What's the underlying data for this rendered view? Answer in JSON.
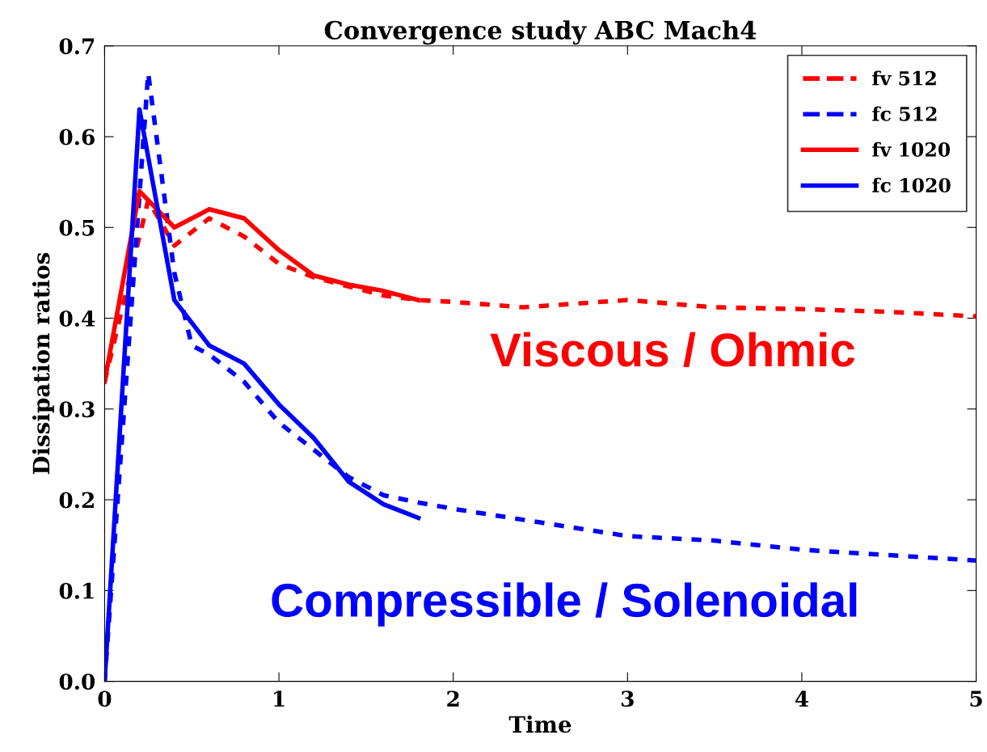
{
  "chart_data": {
    "type": "line",
    "title": "Convergence study ABC Mach4",
    "xlabel": "Time",
    "ylabel": "Dissipation ratios",
    "xlim": [
      0,
      5
    ],
    "ylim": [
      0,
      0.7
    ],
    "xticks": [
      0,
      1,
      2,
      3,
      4,
      5
    ],
    "yticks": [
      {
        "value": 0,
        "label": "0.0"
      },
      0.1,
      0.2,
      0.3,
      0.4,
      0.5,
      0.6,
      0.7
    ],
    "grid": false,
    "legend": "top right",
    "marker": "none",
    "series": [
      {
        "name": "fv 512",
        "color": "#ff0000",
        "line_style": "dashed",
        "x": [
          0,
          0.25,
          0.4,
          0.6,
          0.8,
          1.0,
          1.2,
          1.4,
          1.6,
          1.8,
          2.0,
          2.4,
          3.0,
          3.5,
          4.0,
          4.5,
          5.0
        ],
        "values": [
          0.33,
          0.53,
          0.48,
          0.51,
          0.49,
          0.46,
          0.445,
          0.435,
          0.425,
          0.42,
          0.418,
          0.412,
          0.42,
          0.412,
          0.41,
          0.407,
          0.402
        ]
      },
      {
        "name": "fc 512",
        "color": "#0000ff",
        "line_style": "dashed",
        "x": [
          0,
          0.25,
          0.4,
          0.5,
          0.6,
          0.8,
          1.0,
          1.2,
          1.4,
          1.6,
          1.8,
          2.0,
          2.5,
          3.0,
          3.5,
          4.0,
          4.5,
          5.0
        ],
        "values": [
          0.0,
          0.67,
          0.45,
          0.37,
          0.36,
          0.33,
          0.285,
          0.255,
          0.225,
          0.205,
          0.197,
          0.19,
          0.175,
          0.16,
          0.155,
          0.145,
          0.139,
          0.133
        ]
      },
      {
        "name": "fv 1020",
        "color": "#ff0000",
        "line_style": "solid",
        "x": [
          0,
          0.2,
          0.4,
          0.6,
          0.8,
          1.0,
          1.2,
          1.4,
          1.6,
          1.8
        ],
        "values": [
          0.33,
          0.54,
          0.5,
          0.52,
          0.51,
          0.475,
          0.447,
          0.437,
          0.43,
          0.42
        ]
      },
      {
        "name": "fc 1020",
        "color": "#0000ff",
        "line_style": "solid",
        "x": [
          0,
          0.2,
          0.4,
          0.6,
          0.8,
          1.0,
          1.2,
          1.4,
          1.6,
          1.8
        ],
        "values": [
          0.0,
          0.63,
          0.42,
          0.37,
          0.35,
          0.305,
          0.268,
          0.22,
          0.195,
          0.18
        ]
      }
    ],
    "annotations": [
      "Viscous / Ohmic",
      "Compressible / Solenoidal"
    ]
  }
}
